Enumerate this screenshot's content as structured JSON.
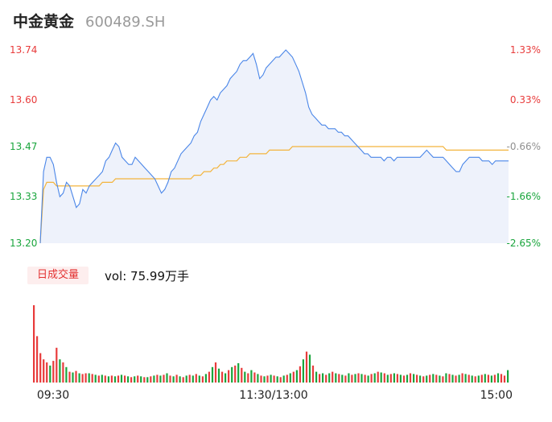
{
  "header": {
    "name": "中金黄金",
    "code": "600489.SH"
  },
  "volume": {
    "label": "日成交量",
    "text": "vol: 75.99万手"
  },
  "colors": {
    "up": "#e83b3b",
    "down": "#19a53c",
    "neutral": "#909090",
    "price_line": "#4a86e8",
    "avg_line": "#f3b43c",
    "area_fill": "#eef2fb"
  },
  "chart_data": [
    {
      "type": "line",
      "title": "",
      "x_ticks": [
        "09:30",
        "11:30/13:00",
        "15:00"
      ],
      "y_left_ticks": [
        "13.74",
        "13.60",
        "13.47",
        "13.33",
        "13.20"
      ],
      "y_right_ticks": [
        "1.33%",
        "0.33%",
        "-0.66%",
        "-1.66%",
        "-2.65%"
      ],
      "ylim": [
        13.2,
        13.74
      ],
      "reference_price": 13.56,
      "series": [
        {
          "values": [
            13.2,
            13.4,
            13.44,
            13.44,
            13.42,
            13.37,
            13.33,
            13.34,
            13.37,
            13.36,
            13.33,
            13.3,
            13.31,
            13.35,
            13.34,
            13.36,
            13.37,
            13.38,
            13.39,
            13.4,
            13.43,
            13.44,
            13.46,
            13.48,
            13.47,
            13.44,
            13.43,
            13.42,
            13.42,
            13.44,
            13.43,
            13.42,
            13.41,
            13.4,
            13.39,
            13.38,
            13.36,
            13.34,
            13.35,
            13.37,
            13.4,
            13.41,
            13.43,
            13.45,
            13.46,
            13.47,
            13.48,
            13.5,
            13.51,
            13.54,
            13.56,
            13.58,
            13.6,
            13.61,
            13.6,
            13.62,
            13.63,
            13.64,
            13.66,
            13.67,
            13.68,
            13.7,
            13.71,
            13.71,
            13.72,
            13.73,
            13.7,
            13.66,
            13.67,
            13.69,
            13.7,
            13.71,
            13.72,
            13.72,
            13.73,
            13.74,
            13.73,
            13.72,
            13.7,
            13.68,
            13.65,
            13.62,
            13.58,
            13.56,
            13.55,
            13.54,
            13.53,
            13.53,
            13.52,
            13.52,
            13.52,
            13.51,
            13.51,
            13.5,
            13.5,
            13.49,
            13.48,
            13.47,
            13.46,
            13.45,
            13.45,
            13.44,
            13.44,
            13.44,
            13.44,
            13.43,
            13.44,
            13.44,
            13.43,
            13.44,
            13.44,
            13.44,
            13.44,
            13.44,
            13.44,
            13.44,
            13.44,
            13.45,
            13.46,
            13.45,
            13.44,
            13.44,
            13.44,
            13.44,
            13.43,
            13.42,
            13.41,
            13.4,
            13.4,
            13.42,
            13.43,
            13.44,
            13.44,
            13.44,
            13.44,
            13.43,
            13.43,
            13.43,
            13.42,
            13.43,
            13.43,
            13.43,
            13.43,
            13.43
          ]
        },
        {
          "values": [
            13.2,
            13.35,
            13.37,
            13.37,
            13.37,
            13.36,
            13.36,
            13.36,
            13.36,
            13.36,
            13.36,
            13.36,
            13.36,
            13.36,
            13.36,
            13.36,
            13.36,
            13.36,
            13.36,
            13.37,
            13.37,
            13.37,
            13.37,
            13.38,
            13.38,
            13.38,
            13.38,
            13.38,
            13.38,
            13.38,
            13.38,
            13.38,
            13.38,
            13.38,
            13.38,
            13.38,
            13.38,
            13.38,
            13.38,
            13.38,
            13.38,
            13.38,
            13.38,
            13.38,
            13.38,
            13.38,
            13.38,
            13.39,
            13.39,
            13.39,
            13.4,
            13.4,
            13.4,
            13.41,
            13.41,
            13.42,
            13.42,
            13.43,
            13.43,
            13.43,
            13.43,
            13.44,
            13.44,
            13.44,
            13.45,
            13.45,
            13.45,
            13.45,
            13.45,
            13.45,
            13.46,
            13.46,
            13.46,
            13.46,
            13.46,
            13.46,
            13.46,
            13.47,
            13.47,
            13.47,
            13.47,
            13.47,
            13.47,
            13.47,
            13.47,
            13.47,
            13.47,
            13.47,
            13.47,
            13.47,
            13.47,
            13.47,
            13.47,
            13.47,
            13.47,
            13.47,
            13.47,
            13.47,
            13.47,
            13.47,
            13.47,
            13.47,
            13.47,
            13.47,
            13.47,
            13.47,
            13.47,
            13.47,
            13.47,
            13.47,
            13.47,
            13.47,
            13.47,
            13.47,
            13.47,
            13.47,
            13.47,
            13.47,
            13.47,
            13.47,
            13.47,
            13.47,
            13.47,
            13.47,
            13.46,
            13.46,
            13.46,
            13.46,
            13.46,
            13.46,
            13.46,
            13.46,
            13.46,
            13.46,
            13.46,
            13.46,
            13.46,
            13.46,
            13.46,
            13.46,
            13.46,
            13.46,
            13.46,
            13.46
          ]
        }
      ]
    },
    {
      "type": "bar",
      "title": "",
      "values": [
        100,
        60,
        38,
        30,
        26,
        22,
        28,
        45,
        30,
        26,
        20,
        14,
        13,
        15,
        12,
        11,
        12,
        12,
        11,
        10,
        9,
        10,
        9,
        8,
        9,
        8,
        9,
        10,
        9,
        8,
        7,
        8,
        9,
        8,
        7,
        7,
        8,
        9,
        10,
        9,
        10,
        12,
        9,
        8,
        10,
        8,
        7,
        9,
        10,
        9,
        11,
        9,
        8,
        11,
        14,
        20,
        26,
        18,
        14,
        12,
        16,
        20,
        22,
        25,
        19,
        14,
        12,
        16,
        13,
        11,
        9,
        8,
        9,
        10,
        9,
        8,
        7,
        9,
        10,
        12,
        14,
        16,
        21,
        30,
        40,
        36,
        22,
        14,
        11,
        12,
        10,
        12,
        14,
        12,
        11,
        10,
        9,
        12,
        10,
        11,
        12,
        11,
        10,
        9,
        11,
        12,
        14,
        13,
        12,
        10,
        11,
        12,
        11,
        10,
        9,
        10,
        12,
        11,
        10,
        9,
        8,
        9,
        10,
        11,
        10,
        9,
        8,
        12,
        11,
        10,
        9,
        10,
        12,
        11,
        10,
        9,
        8,
        9,
        10,
        11,
        10,
        9,
        10,
        12,
        11,
        9,
        16
      ],
      "colors": [
        "up",
        "up",
        "up",
        "up",
        "up",
        "down",
        "up",
        "up",
        "down",
        "up",
        "down",
        "up",
        "down",
        "up",
        "down",
        "up",
        "up",
        "down",
        "up",
        "down",
        "up",
        "down",
        "up",
        "down",
        "up",
        "down",
        "up",
        "down",
        "up",
        "down",
        "up",
        "down",
        "up",
        "down",
        "up",
        "down",
        "up",
        "down",
        "up",
        "down",
        "up",
        "down",
        "up",
        "down",
        "up",
        "down",
        "up",
        "down",
        "up",
        "down",
        "up",
        "down",
        "up",
        "down",
        "up",
        "down",
        "up",
        "down",
        "up",
        "down",
        "up",
        "down",
        "up",
        "down",
        "up",
        "down",
        "up",
        "down",
        "up",
        "down",
        "up",
        "down",
        "up",
        "down",
        "up",
        "down",
        "up",
        "down",
        "up",
        "down",
        "up",
        "down",
        "up",
        "down",
        "up",
        "down",
        "up",
        "down",
        "up",
        "down",
        "up",
        "down",
        "up",
        "down",
        "up",
        "down",
        "up",
        "down",
        "up",
        "down",
        "up",
        "down",
        "up",
        "down",
        "up",
        "down",
        "up",
        "down",
        "up",
        "down",
        "up",
        "down",
        "up",
        "down",
        "up",
        "down",
        "up",
        "down",
        "up",
        "down",
        "up",
        "down",
        "up",
        "down",
        "up",
        "down",
        "up",
        "down",
        "up",
        "down",
        "up",
        "down",
        "up",
        "down",
        "up",
        "down",
        "up",
        "down",
        "up",
        "down",
        "up",
        "down",
        "up",
        "down",
        "up",
        "up"
      ]
    }
  ]
}
